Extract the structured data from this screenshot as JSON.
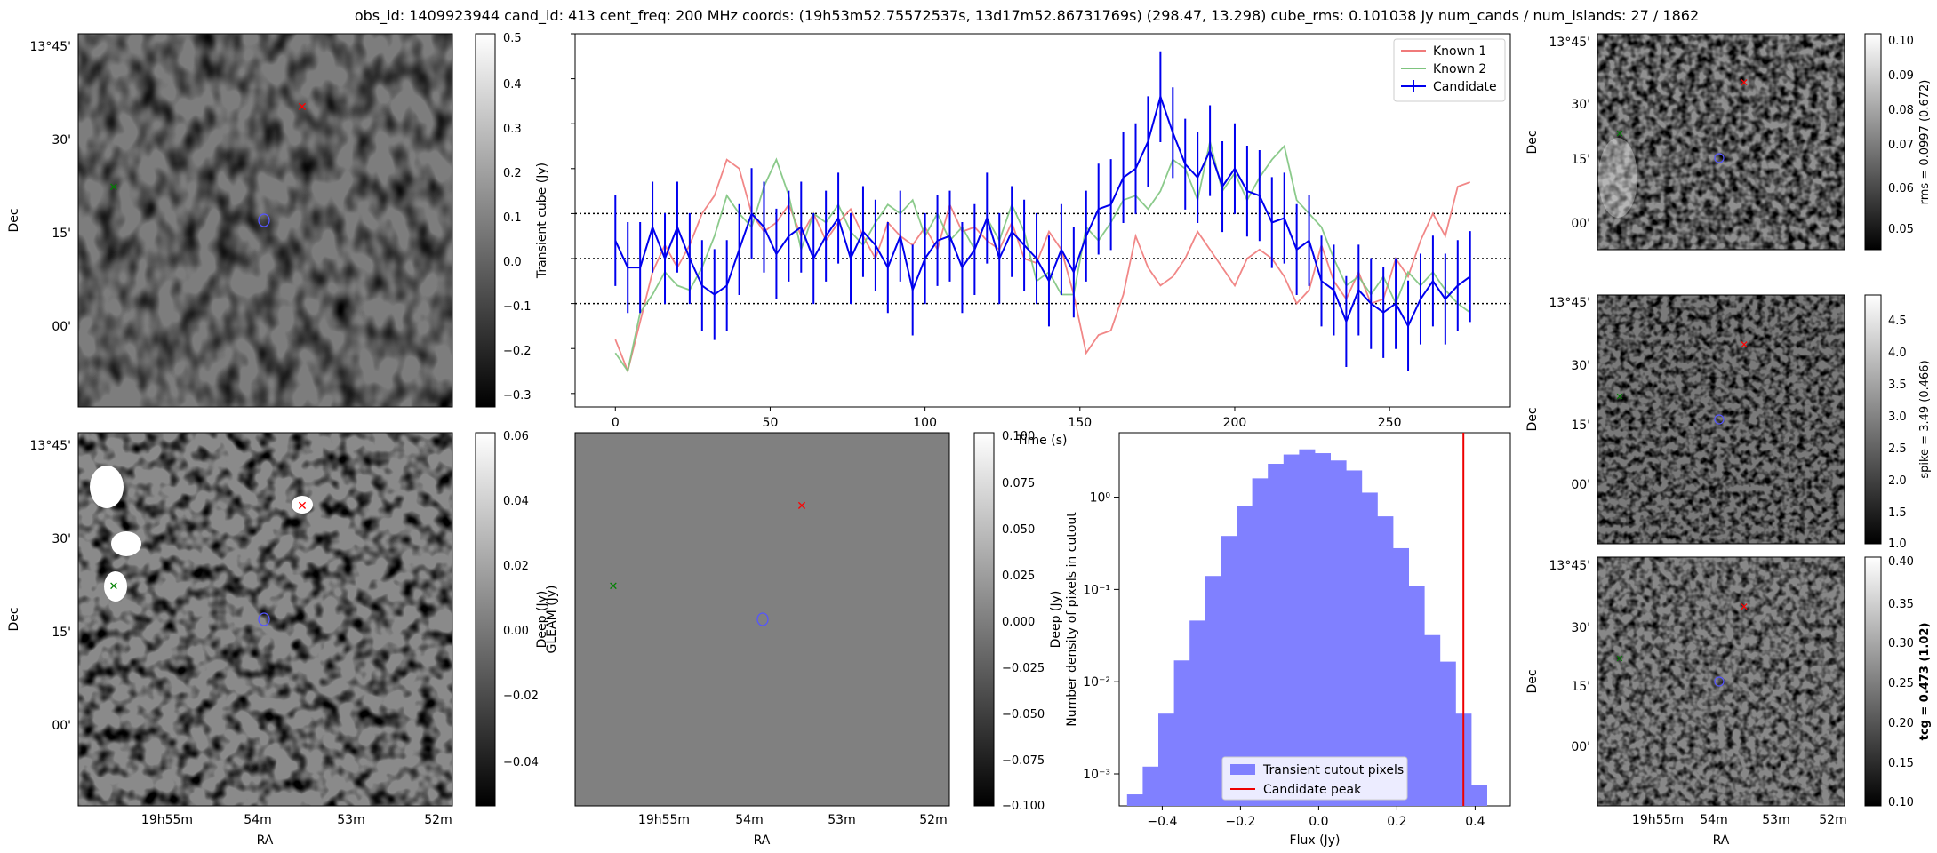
{
  "figure": {
    "title": "obs_id: 1409923944 cand_id: 413 cent_freq: 200 MHz coords: (19h53m52.75572537s, 13d17m52.86731769s) (298.47, 13.298) cube_rms: 0.101038 Jy num_cands / num_islands: 27 / 1862"
  },
  "colors": {
    "known1": "#f07a7a",
    "known2": "#7ec47e",
    "candidate": "#0000ee",
    "hist_fill": "#8080ff",
    "peak_line": "#ee0000",
    "marker_known1": "#ff0000",
    "marker_known2": "#008000",
    "marker_candidate": "#5555ff",
    "gleam_gray": "#808080"
  },
  "sky_axes": {
    "dec_ticks": [
      "13°45'",
      "30'",
      "15'",
      "00'"
    ],
    "ra_ticks": [
      "19h55m",
      "54m",
      "53m",
      "52m"
    ],
    "xlabel": "RA",
    "ylabel": "Dec"
  },
  "transient_cube": {
    "colorbar_label": "Transient cube (Jy)",
    "colorbar_ticks": [
      "0.5",
      "0.4",
      "0.3",
      "0.2",
      "0.1",
      "0.0",
      "−0.1",
      "−0.2",
      "−0.3"
    ]
  },
  "deep": {
    "colorbar_label": "Deep (Jy)",
    "colorbar_ticks": [
      "0.06",
      "0.04",
      "0.02",
      "0.00",
      "−0.02",
      "−0.04"
    ]
  },
  "gleam": {
    "colorbar_label": "GLEAM (Jy)",
    "colorbar_ticks": [
      "0.100",
      "0.075",
      "0.050",
      "0.025",
      "0.000",
      "−0.025",
      "−0.050",
      "−0.075",
      "−0.100"
    ]
  },
  "rms_map": {
    "colorbar_label": "rms = 0.0997 (0.672)",
    "colorbar_ticks": [
      "0.10",
      "0.09",
      "0.08",
      "0.07",
      "0.06",
      "0.05"
    ]
  },
  "spike_map": {
    "colorbar_label": "spike = 3.49 (0.466)",
    "colorbar_ticks": [
      "4.5",
      "4.0",
      "3.5",
      "3.0",
      "2.5",
      "2.0",
      "1.5",
      "1.0"
    ]
  },
  "tcg_map": {
    "colorbar_label": "tcg = 0.473 (1.02)",
    "colorbar_ticks": [
      "0.40",
      "0.35",
      "0.30",
      "0.25",
      "0.20",
      "0.15",
      "0.10"
    ]
  },
  "chart_data": [
    {
      "type": "line",
      "id": "lightcurve",
      "title": "",
      "xlabel": "Time (s)",
      "ylabel": "",
      "xlim": [
        -13,
        289
      ],
      "ylim": [
        -0.33,
        0.5
      ],
      "xticks": [
        0,
        50,
        100,
        150,
        200,
        250
      ],
      "hlines": [
        -0.1,
        0.0,
        0.1
      ],
      "legend": [
        "Known 1",
        "Known 2",
        "Candidate"
      ],
      "legend_position": "top-right",
      "series": [
        {
          "name": "Known 1",
          "x": [
            0,
            4,
            8,
            12,
            16,
            20,
            24,
            28,
            32,
            36,
            40,
            44,
            48,
            52,
            56,
            60,
            64,
            68,
            72,
            76,
            80,
            84,
            88,
            92,
            96,
            100,
            104,
            108,
            112,
            116,
            120,
            124,
            128,
            132,
            136,
            140,
            144,
            148,
            152,
            156,
            160,
            164,
            168,
            172,
            176,
            180,
            184,
            188,
            192,
            196,
            200,
            204,
            208,
            212,
            216,
            220,
            224,
            228,
            232,
            236,
            240,
            244,
            248,
            252,
            256,
            260,
            264,
            268,
            272,
            276
          ],
          "y": [
            -0.18,
            -0.25,
            -0.14,
            -0.03,
            0.03,
            -0.02,
            0.03,
            0.1,
            0.14,
            0.22,
            0.2,
            0.1,
            0.06,
            0.08,
            0.12,
            0.05,
            0.1,
            0.04,
            0.08,
            0.11,
            0.05,
            0.0,
            0.08,
            0.05,
            0.03,
            0.07,
            0.02,
            0.12,
            0.06,
            0.07,
            0.04,
            0.02,
            0.08,
            0.0,
            -0.01,
            0.06,
            0.02,
            -0.08,
            -0.21,
            -0.17,
            -0.16,
            -0.08,
            0.05,
            -0.02,
            -0.06,
            -0.04,
            0.0,
            0.06,
            0.02,
            -0.02,
            -0.06,
            0.0,
            0.02,
            0.0,
            -0.04,
            -0.1,
            -0.07,
            0.03,
            -0.05,
            -0.09,
            -0.03,
            -0.1,
            -0.09,
            0.0,
            -0.04,
            0.04,
            0.1,
            0.05,
            0.16,
            0.17
          ]
        },
        {
          "name": "Known 2",
          "x": [
            0,
            4,
            8,
            12,
            16,
            20,
            24,
            28,
            32,
            36,
            40,
            44,
            48,
            52,
            56,
            60,
            64,
            68,
            72,
            76,
            80,
            84,
            88,
            92,
            96,
            100,
            104,
            108,
            112,
            116,
            120,
            124,
            128,
            132,
            136,
            140,
            144,
            148,
            152,
            156,
            160,
            164,
            168,
            172,
            176,
            180,
            184,
            188,
            192,
            196,
            200,
            204,
            208,
            212,
            216,
            220,
            224,
            228,
            232,
            236,
            240,
            244,
            248,
            252,
            256,
            260,
            264,
            268,
            272,
            276
          ],
          "y": [
            -0.21,
            -0.25,
            -0.12,
            -0.08,
            -0.03,
            -0.06,
            -0.07,
            -0.02,
            0.05,
            0.14,
            0.1,
            0.07,
            0.16,
            0.22,
            0.14,
            0.02,
            0.1,
            0.08,
            0.12,
            0.06,
            0.03,
            0.08,
            0.12,
            0.1,
            0.13,
            0.05,
            0.1,
            0.04,
            0.07,
            0.02,
            0.09,
            0.04,
            0.12,
            0.06,
            -0.05,
            -0.03,
            -0.08,
            -0.08,
            0.07,
            0.04,
            0.08,
            0.13,
            0.14,
            0.11,
            0.15,
            0.22,
            0.2,
            0.13,
            0.26,
            0.15,
            0.19,
            0.13,
            0.18,
            0.22,
            0.25,
            0.13,
            0.1,
            0.07,
            0.0,
            -0.06,
            -0.04,
            -0.08,
            -0.04,
            -0.1,
            -0.03,
            -0.06,
            -0.03,
            -0.07,
            -0.1,
            -0.12
          ]
        },
        {
          "name": "Candidate",
          "x": [
            0,
            4,
            8,
            12,
            16,
            20,
            24,
            28,
            32,
            36,
            40,
            44,
            48,
            52,
            56,
            60,
            64,
            68,
            72,
            76,
            80,
            84,
            88,
            92,
            96,
            100,
            104,
            108,
            112,
            116,
            120,
            124,
            128,
            132,
            136,
            140,
            144,
            148,
            152,
            156,
            160,
            164,
            168,
            172,
            176,
            180,
            184,
            188,
            192,
            196,
            200,
            204,
            208,
            212,
            216,
            220,
            224,
            228,
            232,
            236,
            240,
            244,
            248,
            252,
            256,
            260,
            264,
            268,
            272,
            276
          ],
          "y": [
            0.04,
            -0.02,
            -0.02,
            0.07,
            0.0,
            0.07,
            0.0,
            -0.06,
            -0.08,
            -0.06,
            0.02,
            0.1,
            0.07,
            0.01,
            0.05,
            0.07,
            0.0,
            0.05,
            0.09,
            0.0,
            0.06,
            0.03,
            -0.02,
            0.05,
            -0.07,
            0.0,
            0.04,
            0.05,
            -0.02,
            0.02,
            0.09,
            0.0,
            0.06,
            0.03,
            0.0,
            -0.05,
            0.02,
            -0.03,
            0.05,
            0.11,
            0.12,
            0.18,
            0.2,
            0.26,
            0.36,
            0.28,
            0.21,
            0.18,
            0.24,
            0.16,
            0.2,
            0.15,
            0.14,
            0.08,
            0.09,
            0.02,
            0.04,
            -0.05,
            -0.07,
            -0.14,
            -0.07,
            -0.1,
            -0.12,
            -0.1,
            -0.15,
            -0.09,
            -0.05,
            -0.09,
            -0.06,
            -0.04
          ],
          "yerr": 0.101
        }
      ]
    },
    {
      "type": "bar",
      "id": "histogram",
      "title": "",
      "xlabel": "Flux (Jy)",
      "ylabel": "Number density of pixels in cutout",
      "yscale": "log",
      "xlim": [
        -0.51,
        0.49
      ],
      "ylim": [
        0.00045,
        5.0
      ],
      "xticks": [
        -0.4,
        -0.2,
        0.0,
        0.2,
        0.4
      ],
      "xticklabels": [
        "−0.4",
        "−0.2",
        "0.0",
        "0.2",
        "0.4"
      ],
      "yticks": [
        0.001,
        0.01,
        0.1,
        1
      ],
      "yticklabels": [
        "10⁻³",
        "10⁻²",
        "10⁻¹",
        "10⁰"
      ],
      "bin_edges": [
        -0.49,
        -0.45,
        -0.41,
        -0.37,
        -0.33,
        -0.29,
        -0.25,
        -0.21,
        -0.17,
        -0.13,
        -0.09,
        -0.05,
        -0.01,
        0.03,
        0.07,
        0.11,
        0.15,
        0.19,
        0.23,
        0.27,
        0.31,
        0.35,
        0.39,
        0.43
      ],
      "values": [
        0.0006,
        0.0012,
        0.0045,
        0.017,
        0.046,
        0.14,
        0.38,
        0.8,
        1.6,
        2.3,
        2.9,
        3.3,
        3.0,
        2.5,
        1.95,
        1.12,
        0.62,
        0.28,
        0.11,
        0.032,
        0.0165,
        0.0045,
        0.00075
      ],
      "peak_x": 0.37,
      "legend": [
        "Transient cutout pixels",
        "Candidate peak"
      ],
      "legend_position": "bottom-center"
    }
  ]
}
